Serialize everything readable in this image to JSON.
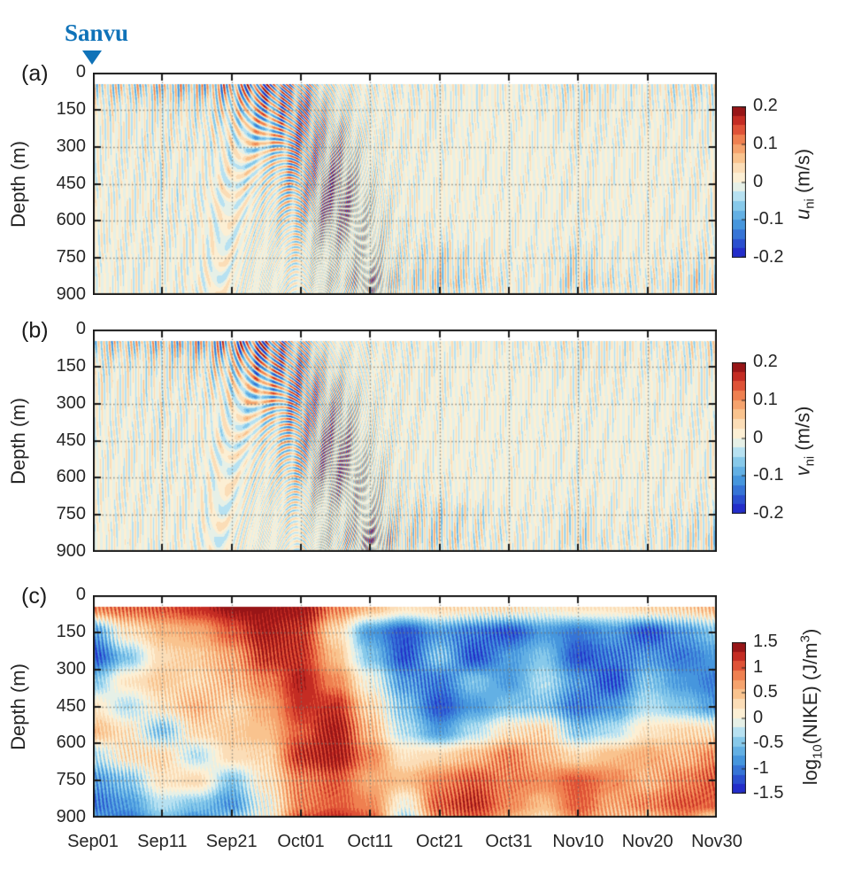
{
  "annotation": {
    "label": "Sanvu",
    "color": "#0f72b8"
  },
  "axes": {
    "ylabel": "Depth (m)",
    "y_ticks": [
      "0",
      "150",
      "300",
      "450",
      "600",
      "750",
      "900"
    ],
    "x_ticks": [
      "Sep01",
      "Sep11",
      "Sep21",
      "Oct01",
      "Oct11",
      "Oct21",
      "Oct31",
      "Nov10",
      "Nov20",
      "Nov30"
    ]
  },
  "panels": [
    {
      "letter": "(a)",
      "colorbar": {
        "ticks": [
          "0.2",
          "0.1",
          "0",
          "-0.1",
          "-0.2"
        ],
        "label": {
          "var": "u",
          "sub": "ni",
          "unit": " (m/s)"
        }
      }
    },
    {
      "letter": "(b)",
      "colorbar": {
        "ticks": [
          "0.2",
          "0.1",
          "0",
          "-0.1",
          "-0.2"
        ],
        "label": {
          "var": "v",
          "sub": "ni",
          "unit": " (m/s)"
        }
      }
    },
    {
      "letter": "(c)",
      "colorbar": {
        "ticks": [
          "1.5",
          "1",
          "0.5",
          "0",
          "-0.5",
          "-1",
          "-1.5"
        ],
        "label": {
          "pre": "log",
          "sub": "10",
          "mid": "(NIKE) (J/m",
          "sup": "3",
          "post": ")"
        }
      }
    }
  ],
  "colormap": {
    "style": "diverging blue-cream-red, discretized",
    "n_levels": 16,
    "stops": [
      [
        0.0,
        "#1f1cc8"
      ],
      [
        0.1,
        "#2b52cf"
      ],
      [
        0.2,
        "#3e8edb"
      ],
      [
        0.32,
        "#74c0e8"
      ],
      [
        0.42,
        "#c2e6f2"
      ],
      [
        0.5,
        "#fdf6e0"
      ],
      [
        0.58,
        "#fbe3c0"
      ],
      [
        0.68,
        "#f8b97f"
      ],
      [
        0.78,
        "#ef8150"
      ],
      [
        0.87,
        "#d93e2c"
      ],
      [
        0.94,
        "#b01b1b"
      ],
      [
        1.0,
        "#7e0f12"
      ]
    ]
  },
  "chart_data": [
    {
      "panel": "a",
      "type": "heatmap",
      "variable": "u_ni",
      "units": "m/s",
      "x_axis": {
        "ticks": [
          "Sep01",
          "Sep11",
          "Sep21",
          "Oct01",
          "Oct11",
          "Oct21",
          "Oct31",
          "Nov10",
          "Nov20",
          "Nov30"
        ],
        "tick_days": [
          0,
          10,
          20,
          30,
          40,
          50,
          60,
          70,
          80,
          90
        ],
        "range_days": [
          0,
          90
        ]
      },
      "y_axis": {
        "label": "Depth (m)",
        "ticks": [
          0,
          150,
          300,
          450,
          600,
          750,
          900
        ],
        "range_m": [
          0,
          900
        ]
      },
      "clim": [
        -0.2,
        0.2
      ],
      "colorbar_ticks": [
        0.2,
        0.1,
        0,
        -0.1,
        -0.2
      ],
      "grid_on": true,
      "no_data_above_m": 45,
      "oscillation_period_days": 0.77,
      "times_days": [
        0,
        5,
        10,
        15,
        20,
        25,
        30,
        35,
        40,
        45,
        50,
        55,
        60,
        65,
        70,
        75,
        80,
        85,
        90
      ],
      "depths_m": [
        50,
        150,
        250,
        350,
        450,
        550,
        650,
        750,
        850,
        900
      ],
      "amplitude_envelope_ms": [
        [
          0.1,
          0.1,
          0.12,
          0.13,
          0.16,
          0.22,
          0.14,
          0.06,
          0.05,
          0.05,
          0.05,
          0.04,
          0.04,
          0.05,
          0.07,
          0.05,
          0.05,
          0.07,
          0.08
        ],
        [
          0.05,
          0.05,
          0.06,
          0.06,
          0.09,
          0.16,
          0.18,
          0.08,
          0.04,
          0.04,
          0.04,
          0.03,
          0.03,
          0.04,
          0.05,
          0.04,
          0.04,
          0.05,
          0.05
        ],
        [
          0.04,
          0.05,
          0.05,
          0.05,
          0.06,
          0.12,
          0.18,
          0.12,
          0.05,
          0.04,
          0.04,
          0.03,
          0.03,
          0.03,
          0.04,
          0.04,
          0.03,
          0.04,
          0.04
        ],
        [
          0.04,
          0.04,
          0.05,
          0.04,
          0.05,
          0.08,
          0.16,
          0.15,
          0.05,
          0.04,
          0.03,
          0.03,
          0.03,
          0.03,
          0.04,
          0.03,
          0.03,
          0.04,
          0.04
        ],
        [
          0.04,
          0.04,
          0.05,
          0.04,
          0.05,
          0.06,
          0.14,
          0.18,
          0.06,
          0.04,
          0.03,
          0.03,
          0.03,
          0.03,
          0.04,
          0.03,
          0.03,
          0.04,
          0.04
        ],
        [
          0.04,
          0.04,
          0.05,
          0.04,
          0.04,
          0.05,
          0.12,
          0.18,
          0.08,
          0.04,
          0.03,
          0.03,
          0.03,
          0.03,
          0.04,
          0.03,
          0.03,
          0.04,
          0.04
        ],
        [
          0.04,
          0.04,
          0.04,
          0.04,
          0.04,
          0.05,
          0.08,
          0.13,
          0.08,
          0.05,
          0.04,
          0.03,
          0.03,
          0.03,
          0.04,
          0.03,
          0.03,
          0.04,
          0.04
        ],
        [
          0.03,
          0.04,
          0.04,
          0.04,
          0.04,
          0.04,
          0.06,
          0.08,
          0.09,
          0.06,
          0.08,
          0.06,
          0.04,
          0.04,
          0.07,
          0.04,
          0.04,
          0.05,
          0.06
        ],
        [
          0.03,
          0.04,
          0.04,
          0.04,
          0.04,
          0.04,
          0.05,
          0.09,
          0.14,
          0.08,
          0.1,
          0.07,
          0.05,
          0.04,
          0.1,
          0.06,
          0.05,
          0.08,
          0.1
        ],
        [
          0.03,
          0.03,
          0.04,
          0.04,
          0.04,
          0.04,
          0.05,
          0.07,
          0.1,
          0.06,
          0.06,
          0.05,
          0.04,
          0.04,
          0.06,
          0.04,
          0.04,
          0.06,
          0.08
        ]
      ]
    },
    {
      "panel": "b",
      "type": "heatmap",
      "variable": "v_ni",
      "units": "m/s",
      "x_axis": {
        "ticks": [
          "Sep01",
          "Sep11",
          "Sep21",
          "Oct01",
          "Oct11",
          "Oct21",
          "Oct31",
          "Nov10",
          "Nov20",
          "Nov30"
        ],
        "tick_days": [
          0,
          10,
          20,
          30,
          40,
          50,
          60,
          70,
          80,
          90
        ],
        "range_days": [
          0,
          90
        ]
      },
      "y_axis": {
        "label": "Depth (m)",
        "ticks": [
          0,
          150,
          300,
          450,
          600,
          750,
          900
        ],
        "range_m": [
          0,
          900
        ]
      },
      "clim": [
        -0.2,
        0.2
      ],
      "colorbar_ticks": [
        0.2,
        0.1,
        0,
        -0.1,
        -0.2
      ],
      "grid_on": true,
      "no_data_above_m": 45,
      "oscillation_period_days": 0.77,
      "times_days": [
        0,
        5,
        10,
        15,
        20,
        25,
        30,
        35,
        40,
        45,
        50,
        55,
        60,
        65,
        70,
        75,
        80,
        85,
        90
      ],
      "depths_m": [
        50,
        150,
        250,
        350,
        450,
        550,
        650,
        750,
        850,
        900
      ],
      "amplitude_envelope_ms": [
        [
          0.12,
          0.1,
          0.12,
          0.14,
          0.18,
          0.22,
          0.12,
          0.05,
          0.05,
          0.05,
          0.04,
          0.04,
          0.04,
          0.05,
          0.06,
          0.05,
          0.05,
          0.06,
          0.08
        ],
        [
          0.06,
          0.05,
          0.06,
          0.07,
          0.1,
          0.18,
          0.16,
          0.07,
          0.04,
          0.04,
          0.04,
          0.03,
          0.03,
          0.04,
          0.05,
          0.04,
          0.04,
          0.05,
          0.05
        ],
        [
          0.05,
          0.05,
          0.05,
          0.05,
          0.07,
          0.13,
          0.18,
          0.11,
          0.05,
          0.04,
          0.04,
          0.03,
          0.03,
          0.03,
          0.04,
          0.04,
          0.03,
          0.04,
          0.04
        ],
        [
          0.04,
          0.04,
          0.05,
          0.04,
          0.05,
          0.09,
          0.16,
          0.14,
          0.05,
          0.04,
          0.03,
          0.03,
          0.03,
          0.03,
          0.04,
          0.03,
          0.03,
          0.04,
          0.04
        ],
        [
          0.04,
          0.04,
          0.05,
          0.04,
          0.05,
          0.06,
          0.14,
          0.17,
          0.06,
          0.04,
          0.03,
          0.03,
          0.03,
          0.03,
          0.04,
          0.03,
          0.03,
          0.04,
          0.04
        ],
        [
          0.04,
          0.04,
          0.04,
          0.04,
          0.04,
          0.05,
          0.12,
          0.17,
          0.08,
          0.04,
          0.03,
          0.03,
          0.03,
          0.03,
          0.04,
          0.03,
          0.03,
          0.04,
          0.04
        ],
        [
          0.04,
          0.04,
          0.04,
          0.04,
          0.04,
          0.05,
          0.08,
          0.13,
          0.09,
          0.05,
          0.04,
          0.03,
          0.03,
          0.03,
          0.04,
          0.03,
          0.03,
          0.04,
          0.04
        ],
        [
          0.03,
          0.04,
          0.04,
          0.04,
          0.04,
          0.04,
          0.06,
          0.08,
          0.1,
          0.07,
          0.08,
          0.06,
          0.04,
          0.04,
          0.06,
          0.04,
          0.04,
          0.05,
          0.06
        ],
        [
          0.03,
          0.04,
          0.04,
          0.04,
          0.04,
          0.04,
          0.05,
          0.09,
          0.16,
          0.09,
          0.09,
          0.06,
          0.05,
          0.04,
          0.08,
          0.05,
          0.05,
          0.07,
          0.09
        ],
        [
          0.03,
          0.03,
          0.04,
          0.04,
          0.04,
          0.04,
          0.05,
          0.08,
          0.12,
          0.07,
          0.06,
          0.05,
          0.04,
          0.04,
          0.05,
          0.04,
          0.04,
          0.05,
          0.07
        ]
      ]
    },
    {
      "panel": "c",
      "type": "heatmap",
      "variable": "log10(NIKE)",
      "units": "J/m^3",
      "x_axis": {
        "ticks": [
          "Sep01",
          "Sep11",
          "Sep21",
          "Oct01",
          "Oct11",
          "Oct21",
          "Oct31",
          "Nov10",
          "Nov20",
          "Nov30"
        ],
        "tick_days": [
          0,
          10,
          20,
          30,
          40,
          50,
          60,
          70,
          80,
          90
        ],
        "range_days": [
          0,
          90
        ]
      },
      "y_axis": {
        "label": "Depth (m)",
        "ticks": [
          0,
          150,
          300,
          450,
          600,
          750,
          900
        ],
        "range_m": [
          0,
          900
        ]
      },
      "clim": [
        -1.5,
        1.5
      ],
      "colorbar_ticks": [
        1.5,
        1,
        0.5,
        0,
        -0.5,
        -1,
        -1.5
      ],
      "grid_on": true,
      "no_data_above_m": 45,
      "texture_period_days": 0.55,
      "times_days": [
        0,
        5,
        10,
        15,
        20,
        25,
        30,
        35,
        40,
        45,
        50,
        55,
        60,
        65,
        70,
        75,
        80,
        85,
        90
      ],
      "depths_m": [
        50,
        150,
        250,
        350,
        450,
        550,
        650,
        750,
        850,
        900
      ],
      "log10_nike_grid": [
        [
          0.8,
          0.9,
          1.0,
          1.2,
          1.4,
          1.5,
          1.5,
          0.8,
          0.5,
          0.2,
          0.3,
          0.2,
          0.2,
          0.1,
          0.2,
          0.2,
          0.3,
          0.3,
          0.5
        ],
        [
          -0.8,
          0.2,
          0.5,
          0.6,
          1.0,
          1.4,
          1.2,
          0.3,
          -0.8,
          -1.2,
          -0.8,
          -1.0,
          -1.2,
          -0.8,
          -1.0,
          -0.8,
          -1.2,
          -0.8,
          -0.5
        ],
        [
          -1.2,
          -0.5,
          0.3,
          0.4,
          0.6,
          1.2,
          1.2,
          0.5,
          -0.5,
          -1.2,
          -0.5,
          -1.2,
          -0.8,
          -0.5,
          -1.2,
          -1.0,
          -0.8,
          -1.0,
          -0.8
        ],
        [
          -0.5,
          0.2,
          0.4,
          0.3,
          0.5,
          0.8,
          1.3,
          0.8,
          0.0,
          -0.8,
          -1.0,
          -0.5,
          -0.8,
          -0.3,
          -0.8,
          -1.2,
          -0.5,
          -0.8,
          -1.0
        ],
        [
          0.2,
          -0.3,
          0.2,
          0.5,
          0.3,
          0.6,
          1.2,
          1.2,
          0.3,
          -0.5,
          -1.2,
          -0.8,
          -0.5,
          -0.5,
          -1.0,
          -0.8,
          -0.3,
          -0.5,
          -0.8
        ],
        [
          0.5,
          0.2,
          -0.5,
          0.3,
          0.4,
          0.5,
          1.0,
          1.4,
          0.5,
          -0.3,
          -0.8,
          -0.3,
          0.2,
          0.3,
          -0.5,
          -0.3,
          0.2,
          0.3,
          0.2
        ],
        [
          -0.3,
          0.2,
          0.3,
          -0.3,
          0.3,
          0.3,
          1.2,
          1.4,
          0.8,
          0.2,
          0.3,
          0.5,
          0.8,
          0.5,
          0.3,
          0.5,
          0.6,
          0.5,
          0.8
        ],
        [
          -0.8,
          -0.5,
          0.2,
          0.3,
          -0.5,
          0.2,
          0.8,
          1.0,
          0.6,
          0.5,
          0.8,
          1.0,
          0.8,
          0.8,
          1.0,
          0.8,
          0.5,
          0.8,
          1.0
        ],
        [
          -1.0,
          -0.8,
          -0.3,
          -0.5,
          -0.8,
          0.0,
          0.8,
          1.0,
          0.8,
          0.0,
          1.0,
          1.2,
          0.8,
          0.5,
          1.0,
          0.6,
          0.8,
          1.0,
          1.0
        ],
        [
          -0.8,
          -1.0,
          -0.5,
          -0.8,
          -0.5,
          0.0,
          1.0,
          1.2,
          1.0,
          -0.3,
          0.8,
          1.0,
          0.6,
          0.3,
          0.8,
          0.5,
          0.5,
          0.8,
          0.3
        ]
      ]
    }
  ]
}
